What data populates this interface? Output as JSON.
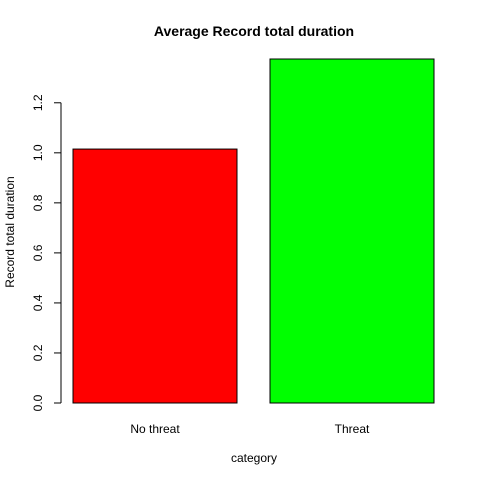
{
  "chart_data": {
    "type": "bar",
    "title": "Average Record total duration",
    "xlabel": "category",
    "ylabel": "Record total duration",
    "categories": [
      "No threat",
      "Threat"
    ],
    "values": [
      1.015,
      1.375
    ],
    "colors": [
      "#ff0000",
      "#00ff00"
    ],
    "ylim": [
      0,
      1.375
    ],
    "yticks": [
      0.0,
      0.2,
      0.4,
      0.6,
      0.8,
      1.0,
      1.2
    ],
    "ytick_labels": [
      "0.0",
      "0.2",
      "0.4",
      "0.6",
      "0.8",
      "1.0",
      "1.2"
    ],
    "grid": false,
    "legend": "none"
  }
}
